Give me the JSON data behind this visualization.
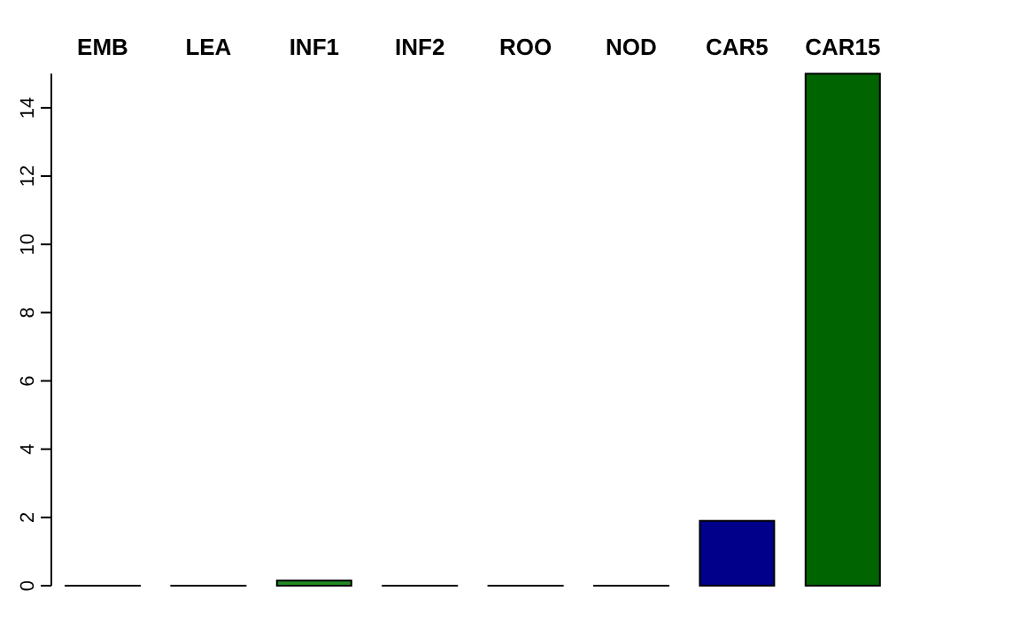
{
  "chart_data": {
    "type": "bar",
    "categories": [
      "EMB",
      "LEA",
      "INF1",
      "INF2",
      "ROO",
      "NOD",
      "CAR5",
      "CAR15"
    ],
    "values": [
      0,
      0,
      0.15,
      0,
      0,
      0,
      1.9,
      15
    ],
    "colors": [
      "#000000",
      "#000000",
      "#228b22",
      "#000000",
      "#000000",
      "#000000",
      "#00008b",
      "#006400"
    ],
    "ylim": [
      0,
      15
    ],
    "yticks": [
      0,
      2,
      4,
      6,
      8,
      10,
      12,
      14
    ],
    "grid": false
  }
}
